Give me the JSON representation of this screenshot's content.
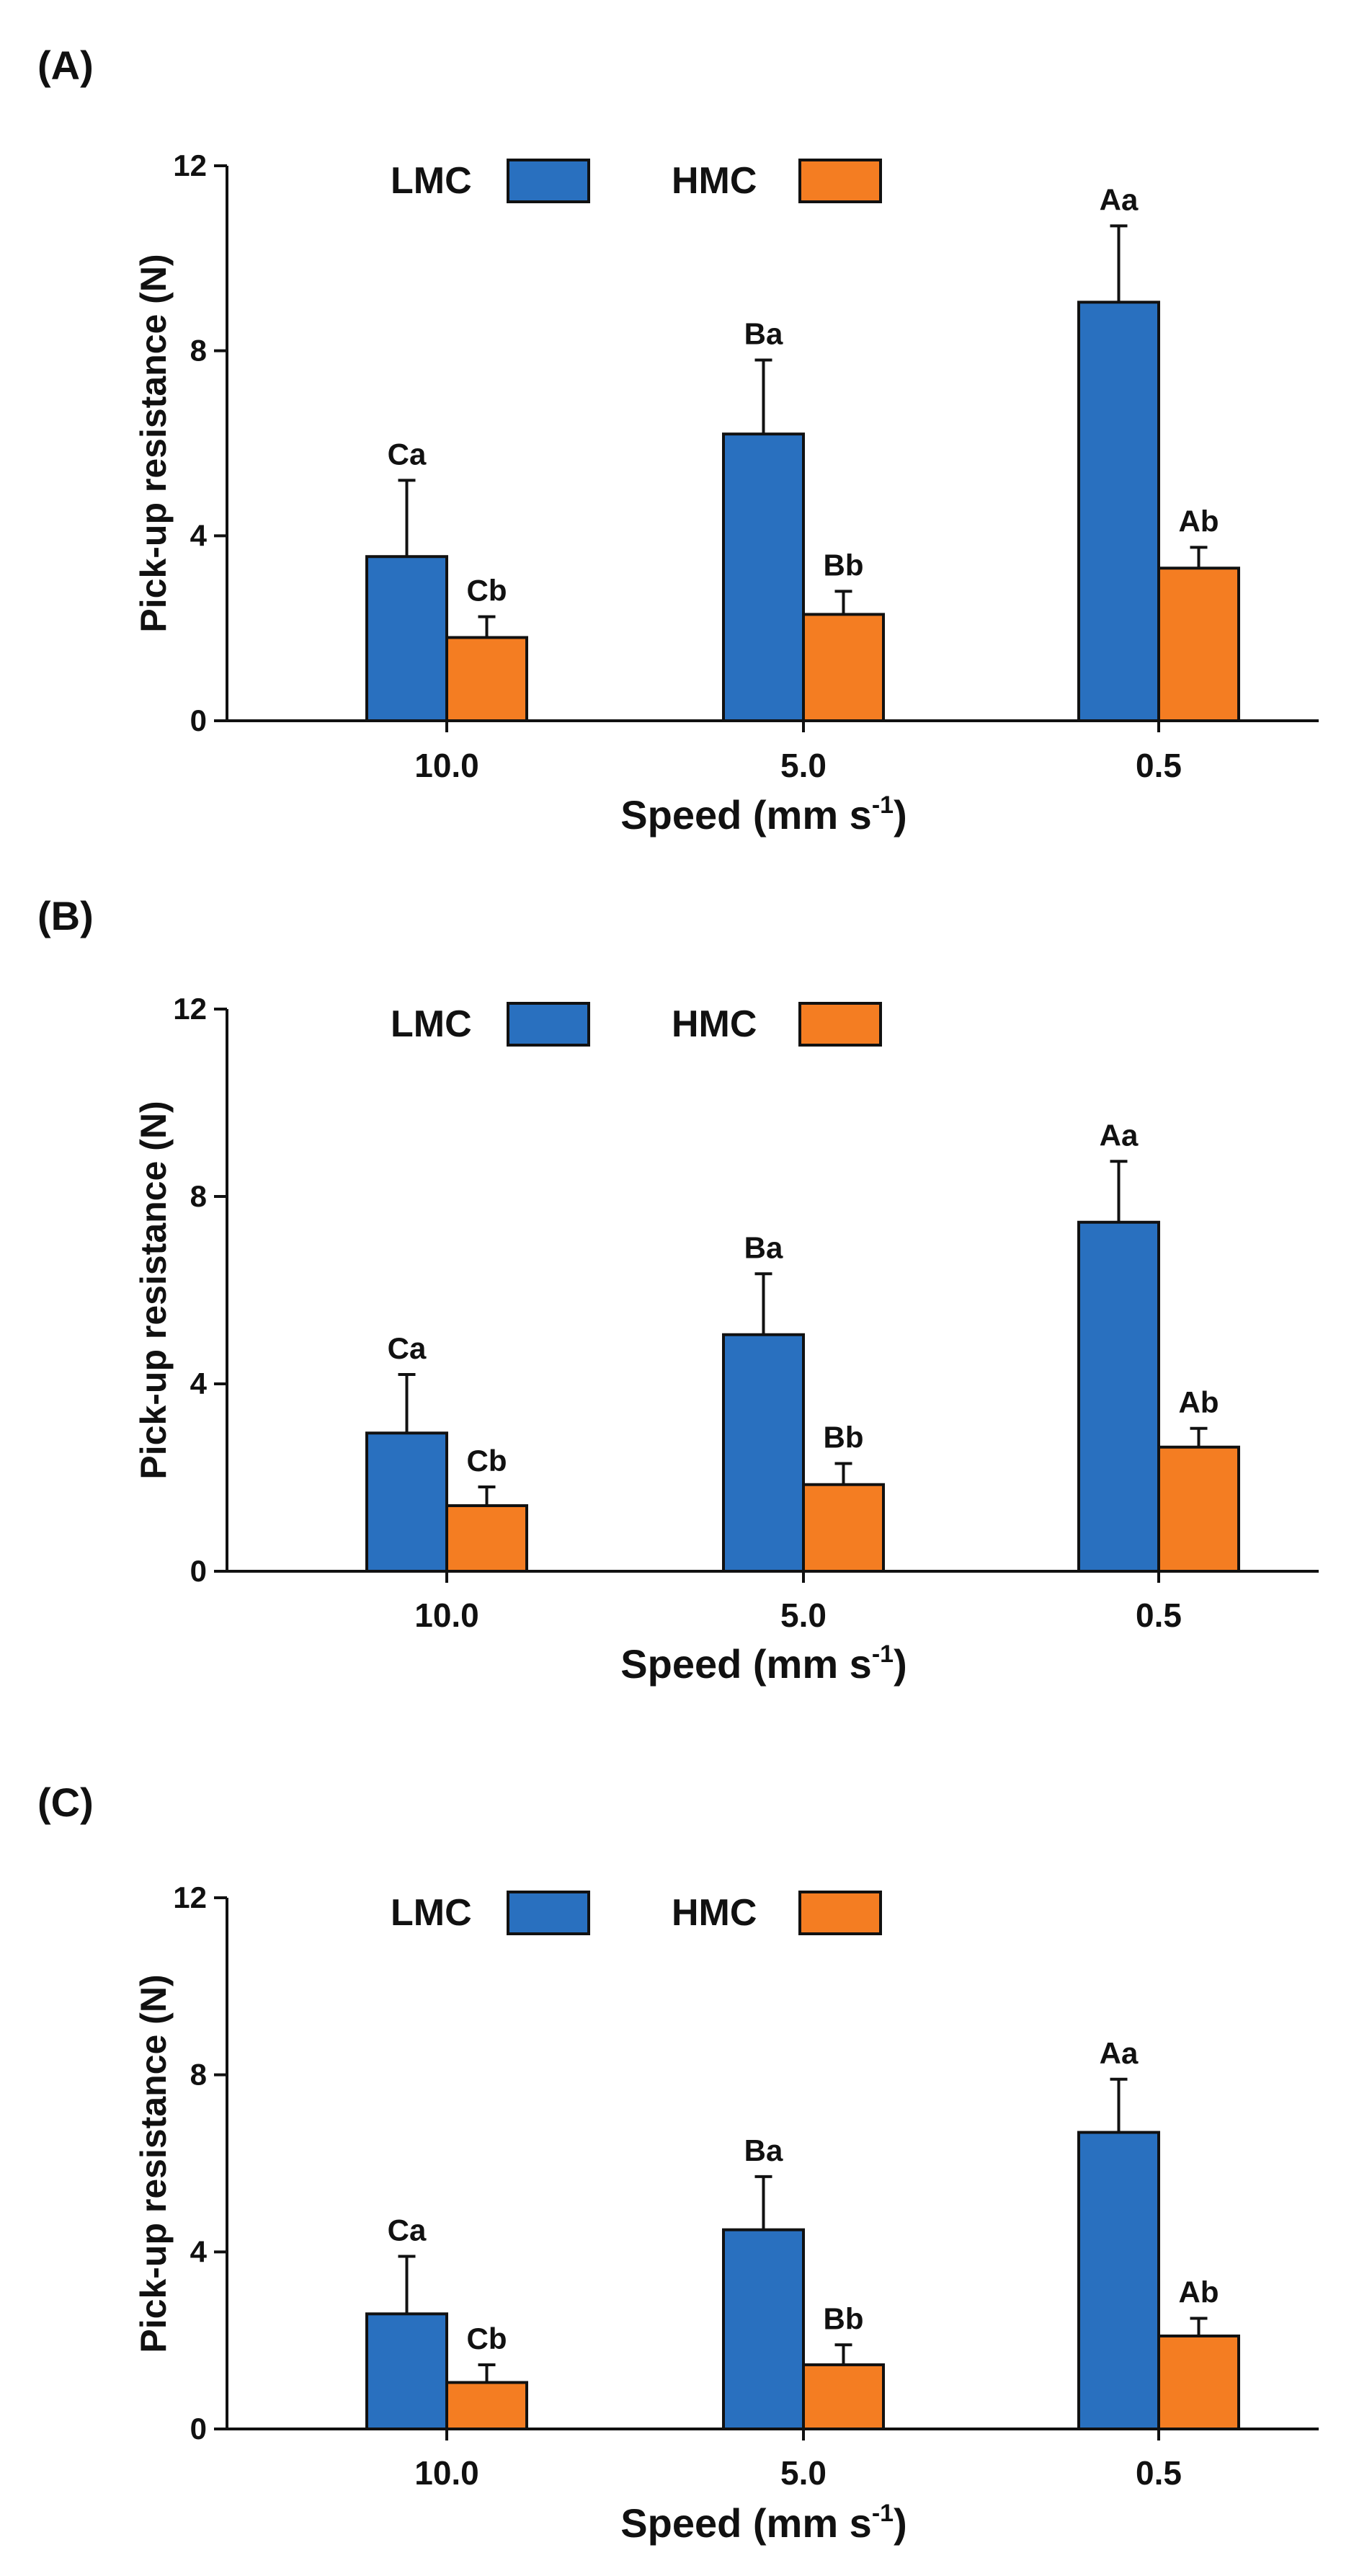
{
  "figure": {
    "colors": {
      "LMC": "#2970BF",
      "HMC": "#F47D22",
      "axis": "#111111"
    }
  },
  "chart_data": [
    {
      "type": "bar",
      "panel_label": "(A)",
      "categories": [
        "10.0",
        "5.0",
        "0.5"
      ],
      "series": [
        {
          "name": "LMC",
          "values": [
            3.55,
            6.2,
            9.05
          ],
          "error": [
            1.65,
            1.6,
            1.65
          ],
          "letters": [
            "Ca",
            "Ba",
            "Aa"
          ]
        },
        {
          "name": "HMC",
          "values": [
            1.8,
            2.3,
            3.3
          ],
          "error": [
            0.45,
            0.5,
            0.45
          ],
          "letters": [
            "Cb",
            "Bb",
            "Ab"
          ]
        }
      ],
      "xlabel": "Speed (mm s",
      "xlabel_sup": "-1",
      "xlabel_end": ")",
      "ylabel": "Pick-up resistance (N)",
      "yticks": [
        0,
        4,
        8,
        12
      ],
      "ylim": [
        0,
        12
      ],
      "legend": "top",
      "grid": false
    },
    {
      "type": "bar",
      "panel_label": "(B)",
      "categories": [
        "10.0",
        "5.0",
        "0.5"
      ],
      "series": [
        {
          "name": "LMC",
          "values": [
            2.95,
            5.05,
            7.45
          ],
          "error": [
            1.25,
            1.3,
            1.3
          ],
          "letters": [
            "Ca",
            "Ba",
            "Aa"
          ]
        },
        {
          "name": "HMC",
          "values": [
            1.4,
            1.85,
            2.65
          ],
          "error": [
            0.4,
            0.45,
            0.4
          ],
          "letters": [
            "Cb",
            "Bb",
            "Ab"
          ]
        }
      ],
      "xlabel": "Speed (mm s",
      "xlabel_sup": "-1",
      "xlabel_end": ")",
      "ylabel": "Pick-up resistance (N)",
      "yticks": [
        0,
        4,
        8,
        12
      ],
      "ylim": [
        0,
        12
      ],
      "legend": "top",
      "grid": false
    },
    {
      "type": "bar",
      "panel_label": "(C)",
      "categories": [
        "10.0",
        "5.0",
        "0.5"
      ],
      "series": [
        {
          "name": "LMC",
          "values": [
            2.6,
            4.5,
            6.7
          ],
          "error": [
            1.3,
            1.2,
            1.2
          ],
          "letters": [
            "Ca",
            "Ba",
            "Aa"
          ]
        },
        {
          "name": "HMC",
          "values": [
            1.05,
            1.45,
            2.1
          ],
          "error": [
            0.4,
            0.45,
            0.4
          ],
          "letters": [
            "Cb",
            "Bb",
            "Ab"
          ]
        }
      ],
      "xlabel": "Speed (mm s",
      "xlabel_sup": "-1",
      "xlabel_end": ")",
      "ylabel": "Pick-up resistance (N)",
      "yticks": [
        0,
        4,
        8,
        12
      ],
      "ylim": [
        0,
        12
      ],
      "legend": "top",
      "grid": false
    }
  ]
}
